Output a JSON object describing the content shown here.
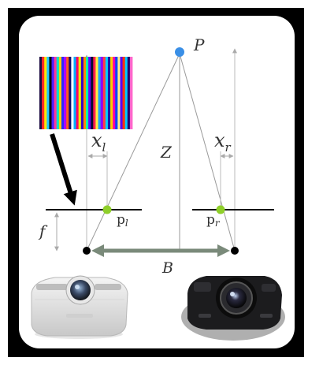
{
  "labels": {
    "point": "P",
    "depth": "Z",
    "xl_main": "x",
    "xl_sub": "l",
    "xr_main": "x",
    "xr_sub": "r",
    "focal": "f",
    "pl_main": "p",
    "pl_sub": "l",
    "pr_main": "p",
    "pr_sub": "r",
    "baseline": "B"
  },
  "devices": {
    "left": "projector-icon",
    "right": "camera-icon"
  },
  "pattern": {
    "colors": [
      "#1a0a40",
      "#ff2a2a",
      "#ffe600",
      "#22c8ff",
      "#0a0a0a",
      "#4b1fff",
      "#ff3a9a",
      "#00e0c8",
      "#ffd000",
      "#2a2aff",
      "#b000ff",
      "#ff5a1a",
      "#10106a",
      "#ffffff",
      "#00b0ff",
      "#ff0066",
      "#e8ff00",
      "#3300cc",
      "#ff8800",
      "#00ffaa",
      "#6600ff",
      "#0a0a30",
      "#ff2050",
      "#ffef40",
      "#20a0ff",
      "#8a00ff",
      "#ff4040",
      "#00d0ff",
      "#1a1aa0",
      "#ffcc00",
      "#ff00aa",
      "#0044ff",
      "#ffee88",
      "#5500ff",
      "#ff3300",
      "#00ccff",
      "#220066",
      "#ff66cc"
    ]
  },
  "colors": {
    "frame": "#000000",
    "panel": "#ffffff",
    "point_p": "#3a8fe6",
    "image_point": "#8fcf2a",
    "baseline_arrow": "#7a8a7a",
    "ray": "#9a9a9a"
  }
}
